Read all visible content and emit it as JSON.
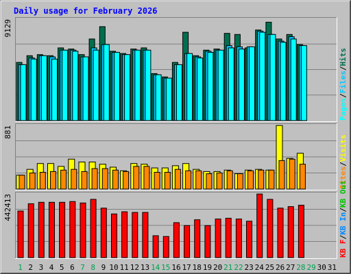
{
  "title": "Daily usage for February 2026",
  "colors": {
    "background": "#C0C0C0",
    "title": "#0000FF",
    "hits": "#006F4F",
    "files": "#00C8FF",
    "pages": "#00FFFF",
    "visits": "#FFFF00",
    "sites": "#FF8800",
    "kb": "#FF0000",
    "kb_in": "#0088FF",
    "kb_out": "#00C000",
    "weekday_label": "#0000FF",
    "weekend_label": "#00A050"
  },
  "chart_data": [
    {
      "type": "bar",
      "name": "hits-files-pages",
      "ymax_label": "9129",
      "ylim": [
        0,
        9129
      ],
      "categories": [
        "1",
        "2",
        "3",
        "4",
        "5",
        "6",
        "7",
        "8",
        "9",
        "10",
        "11",
        "12",
        "13",
        "14",
        "15",
        "16",
        "17",
        "18",
        "19",
        "20",
        "21",
        "22",
        "23",
        "24",
        "25",
        "26",
        "27",
        "28",
        "29",
        "30",
        "31"
      ],
      "legend": [
        "Pages",
        "Files",
        "Hits"
      ],
      "series": [
        {
          "name": "Hits",
          "values": [
            5200,
            5800,
            5900,
            5800,
            6500,
            6400,
            5900,
            7300,
            8400,
            6200,
            6000,
            6400,
            6500,
            4200,
            3900,
            5200,
            7900,
            5800,
            6300,
            6400,
            7800,
            7700,
            6500,
            8100,
            8800,
            7300,
            7700,
            6800,
            null,
            null,
            null
          ]
        },
        {
          "name": "Files",
          "values": [
            5000,
            5600,
            5800,
            5700,
            6300,
            6300,
            5700,
            6500,
            6800,
            6100,
            5900,
            6300,
            6300,
            4100,
            3800,
            5000,
            6000,
            5700,
            6200,
            6300,
            6700,
            6600,
            6600,
            8000,
            7700,
            7100,
            7500,
            6700,
            null,
            null,
            null
          ]
        },
        {
          "name": "Pages",
          "values": [
            5000,
            5500,
            5800,
            5500,
            6300,
            6200,
            5700,
            6300,
            6800,
            6100,
            5900,
            6300,
            6300,
            4100,
            3800,
            5000,
            6000,
            5600,
            6100,
            6300,
            6500,
            6400,
            6600,
            7900,
            7700,
            7000,
            7300,
            6700,
            null,
            null,
            null
          ]
        }
      ]
    },
    {
      "type": "bar",
      "name": "visits-sites",
      "ymax_label": "881",
      "ylim": [
        0,
        881
      ],
      "legend": [
        "Sites",
        "Visits"
      ],
      "series": [
        {
          "name": "Visits",
          "values": [
            190,
            270,
            350,
            350,
            310,
            410,
            370,
            370,
            340,
            300,
            250,
            350,
            340,
            290,
            290,
            320,
            350,
            270,
            240,
            240,
            260,
            210,
            260,
            270,
            260,
            870,
            420,
            490,
            null,
            null,
            null
          ]
        },
        {
          "name": "Sites",
          "values": [
            190,
            220,
            230,
            240,
            260,
            270,
            240,
            280,
            280,
            260,
            240,
            310,
            310,
            230,
            230,
            270,
            250,
            250,
            210,
            220,
            250,
            210,
            250,
            260,
            260,
            390,
            410,
            340,
            null,
            null,
            null
          ]
        }
      ]
    },
    {
      "type": "bar",
      "name": "kb",
      "ymax_label": "442413",
      "ylim": [
        0,
        442413
      ],
      "legend": [
        "KB F",
        "KB In",
        "KB Out"
      ],
      "series": [
        {
          "name": "KB F",
          "values": [
            320000,
            370000,
            380000,
            380000,
            380000,
            385000,
            375000,
            400000,
            340000,
            300000,
            315000,
            310000,
            310000,
            150000,
            145000,
            240000,
            220000,
            260000,
            220000,
            265000,
            270000,
            265000,
            250000,
            437000,
            400000,
            340000,
            350000,
            360000,
            null,
            null,
            null
          ]
        }
      ]
    }
  ],
  "weekend_days": [
    "1",
    "7",
    "8",
    "14",
    "15",
    "21",
    "22",
    "28",
    "29"
  ]
}
